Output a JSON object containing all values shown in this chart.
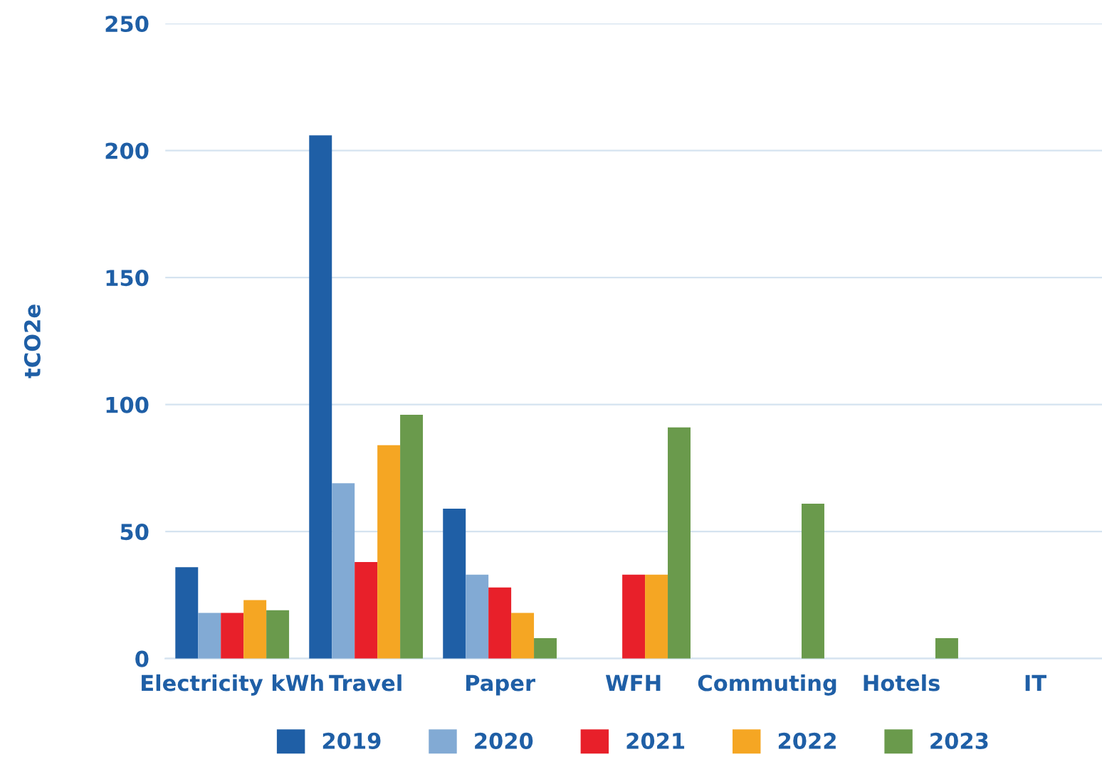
{
  "chart_data": {
    "type": "bar",
    "ylabel": "tCO2e",
    "categories": [
      "Electricity kWh",
      "Travel",
      "Paper",
      "WFH",
      "Commuting",
      "Hotels",
      "IT"
    ],
    "series": [
      {
        "name": "2019",
        "color": "#1f5fa6",
        "values": [
          36,
          206,
          59,
          null,
          null,
          null,
          null
        ]
      },
      {
        "name": "2020",
        "color": "#82aad4",
        "values": [
          18,
          69,
          33,
          null,
          null,
          null,
          null
        ]
      },
      {
        "name": "2021",
        "color": "#e8202a",
        "values": [
          18,
          38,
          28,
          33,
          null,
          null,
          null
        ]
      },
      {
        "name": "2022",
        "color": "#f5a623",
        "values": [
          23,
          84,
          18,
          33,
          null,
          null,
          null
        ]
      },
      {
        "name": "2023",
        "color": "#6a9a4c",
        "values": [
          19,
          96,
          8,
          91,
          61,
          8,
          null
        ]
      }
    ],
    "ylim": [
      0,
      250
    ],
    "yticks": [
      0,
      50,
      100,
      150,
      200,
      250
    ],
    "grid": "y",
    "legend": "bottom"
  }
}
